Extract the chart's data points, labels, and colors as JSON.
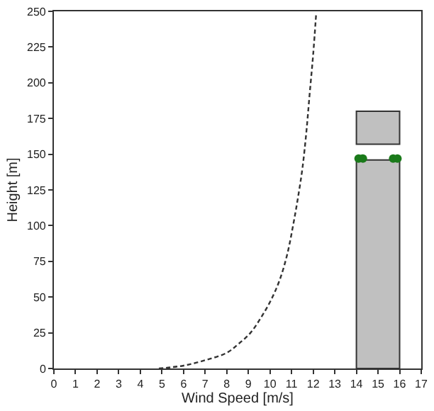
{
  "chart_data": {
    "type": "line",
    "xlabel": "Wind Speed [m/s]",
    "ylabel": "Height [m]",
    "xlim": [
      0,
      17
    ],
    "xticks": [
      0,
      1,
      2,
      3,
      4,
      5,
      6,
      7,
      8,
      9,
      10,
      11,
      12,
      13,
      14,
      15,
      16,
      17
    ],
    "ylim": [
      0,
      250
    ],
    "yticks": [
      0,
      25,
      50,
      75,
      100,
      125,
      150,
      175,
      200,
      225,
      250
    ],
    "series": [
      {
        "line_style": "dashed",
        "color": "#333333",
        "x": [
          4.86,
          6,
          7.05,
          8,
          8.53,
          9.1,
          9.6,
          10.05,
          10.45,
          10.8,
          11.08,
          11.3,
          11.5,
          11.68,
          11.83,
          12,
          12.14
        ],
        "values": [
          0,
          2,
          6,
          11,
          17,
          25,
          36,
          48,
          62,
          80,
          101,
          120,
          140,
          165,
          191,
          220,
          249
        ]
      },
      {
        "type": "bar",
        "color": "#c0c0c0",
        "x": [
          15,
          15
        ],
        "base": [
          0,
          157
        ],
        "values": [
          146,
          23
        ]
      },
      {
        "type": "scatter",
        "marker": "circle",
        "color": "#1a7a1a",
        "x": [
          14.1,
          14.3,
          15.7,
          15.9
        ],
        "values": [
          147,
          147,
          147,
          147
        ]
      }
    ]
  }
}
